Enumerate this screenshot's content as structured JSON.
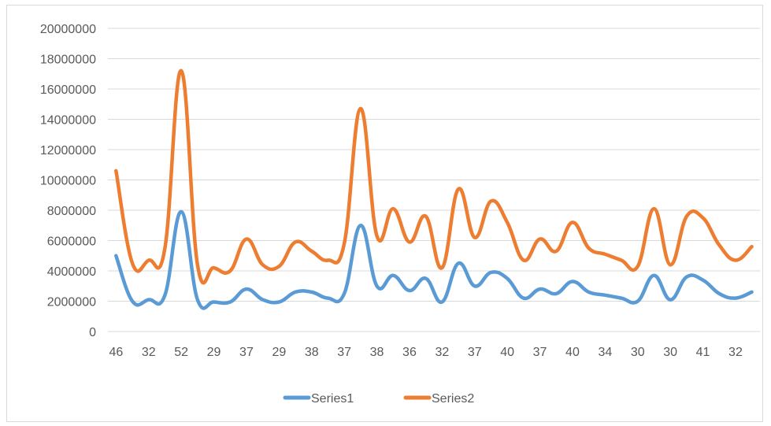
{
  "chart_data": {
    "type": "line",
    "title": "",
    "xlabel": "",
    "ylabel": "",
    "ylim": [
      0,
      20000000
    ],
    "y_ticks": [
      "20000000",
      "18000000",
      "16000000",
      "14000000",
      "12000000",
      "10000000",
      "8000000",
      "6000000",
      "4000000",
      "2000000",
      "0"
    ],
    "x_tick_labels": [
      "46",
      "32",
      "52",
      "29",
      "37",
      "29",
      "38",
      "37",
      "38",
      "36",
      "32",
      "37",
      "40",
      "37",
      "40",
      "34",
      "30",
      "30",
      "41",
      "32"
    ],
    "grid": "horizontal",
    "legend_position": "bottom",
    "series": [
      {
        "name": "Series1",
        "color": "#5b9bd5",
        "values": [
          5000000,
          2000000,
          2100000,
          2400000,
          7900000,
          2100000,
          1950000,
          1950000,
          2800000,
          2100000,
          1950000,
          2600000,
          2600000,
          2200000,
          2500000,
          7000000,
          3000000,
          3700000,
          2700000,
          3500000,
          1950000,
          4500000,
          3000000,
          3900000,
          3500000,
          2200000,
          2800000,
          2500000,
          3300000,
          2600000,
          2400000,
          2200000,
          2000000,
          3700000,
          2100000,
          3600000,
          3400000,
          2500000,
          2200000,
          2600000
        ]
      },
      {
        "name": "Series2",
        "color": "#ed7d31",
        "values": [
          10600000,
          4500000,
          4700000,
          5500000,
          17200000,
          4400000,
          4200000,
          4000000,
          6100000,
          4400000,
          4300000,
          5900000,
          5300000,
          4700000,
          5800000,
          14700000,
          6300000,
          8100000,
          5900000,
          7600000,
          4200000,
          9400000,
          6200000,
          8600000,
          7200000,
          4700000,
          6100000,
          5300000,
          7200000,
          5500000,
          5100000,
          4700000,
          4300000,
          8100000,
          4400000,
          7600000,
          7500000,
          5700000,
          4700000,
          5600000
        ]
      }
    ]
  }
}
